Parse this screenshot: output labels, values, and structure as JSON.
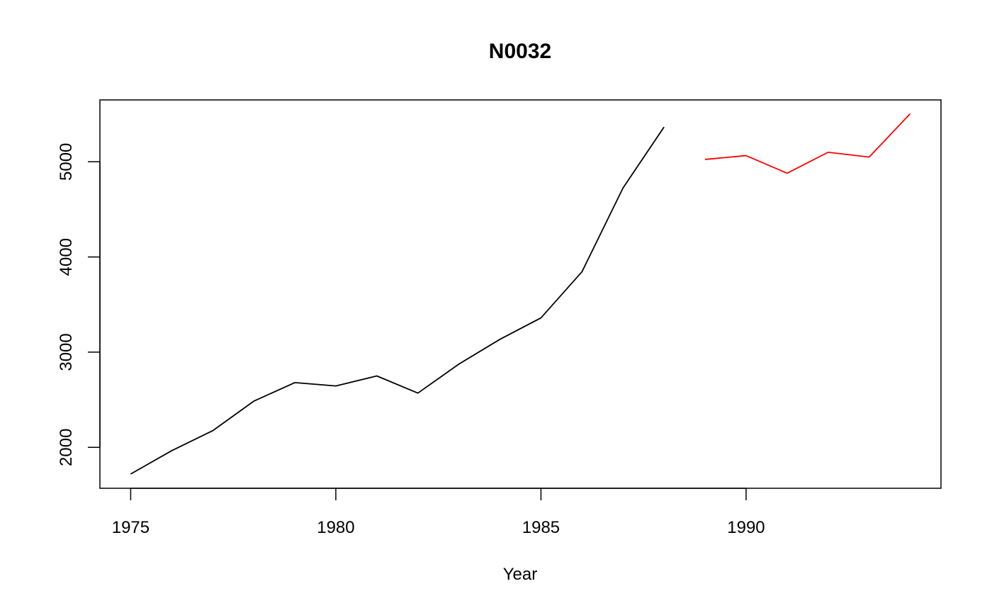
{
  "chart_data": {
    "type": "line",
    "title": "N0032",
    "xlabel": "Year",
    "ylabel": "",
    "xlim": [
      1974.25,
      1994.75
    ],
    "ylim": [
      1570,
      5650
    ],
    "x_ticks": [
      1975,
      1980,
      1985,
      1990
    ],
    "y_ticks": [
      2000,
      3000,
      4000,
      5000
    ],
    "grid": false,
    "series": [
      {
        "color": "#000000",
        "x": [
          1975,
          1976,
          1977,
          1978,
          1979,
          1980,
          1981,
          1982,
          1983,
          1984,
          1985,
          1986,
          1987,
          1988
        ],
        "values": [
          1720,
          1965,
          2175,
          2485,
          2680,
          2645,
          2750,
          2570,
          2875,
          3135,
          3360,
          3845,
          4725,
          5365
        ]
      },
      {
        "color": "#ff0000",
        "x": [
          1989,
          1990,
          1991,
          1992,
          1993,
          1994
        ],
        "values": [
          5025,
          5065,
          4880,
          5100,
          5050,
          5505
        ]
      }
    ]
  }
}
